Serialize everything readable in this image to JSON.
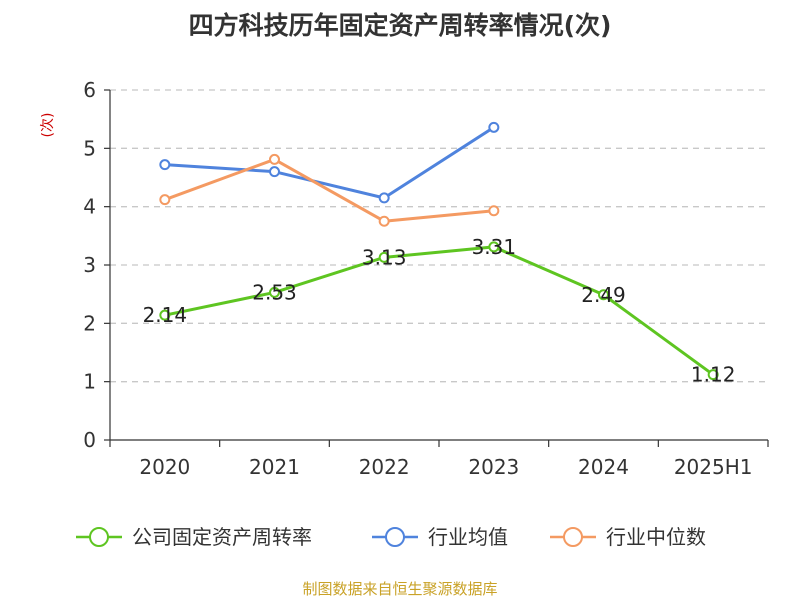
{
  "chart_data": {
    "type": "line",
    "title": "四方科技历年固定资产周转率情况(次)",
    "ylabel": "(次)",
    "xlabel": "",
    "categories": [
      "2020",
      "2021",
      "2022",
      "2023",
      "2024",
      "2025H1"
    ],
    "ylim": [
      0,
      6
    ],
    "yticks": [
      "0",
      "1",
      "2",
      "3",
      "4",
      "5",
      "6"
    ],
    "grid": true,
    "legend_position": "bottom",
    "series": [
      {
        "name": "公司固定资产周转率",
        "color": "#5ec521",
        "values": [
          2.14,
          2.53,
          3.13,
          3.31,
          2.49,
          1.12
        ],
        "labels": [
          "2.14",
          "2.53",
          "3.13",
          "3.31",
          "2.49",
          "1.12"
        ]
      },
      {
        "name": "行业均值",
        "color": "#4f83dd",
        "values": [
          4.72,
          4.6,
          4.15,
          5.36,
          null,
          null
        ]
      },
      {
        "name": "行业中位数",
        "color": "#f49a62",
        "values": [
          4.12,
          4.81,
          3.75,
          3.93,
          null,
          null
        ]
      }
    ],
    "source": "制图数据来自恒生聚源数据库"
  }
}
